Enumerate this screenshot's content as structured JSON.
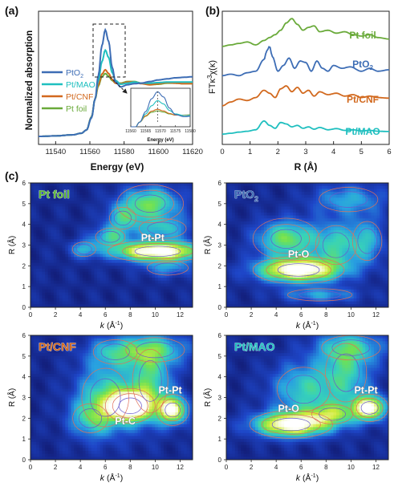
{
  "figure": {
    "panel_a_label": "(a)",
    "panel_b_label": "(b)",
    "panel_c_label": "(c)"
  },
  "chart_data": [
    {
      "id": "a",
      "type": "line",
      "title": "",
      "xlabel": "Energy (eV)",
      "ylabel": "Normalized absorption",
      "xlim": [
        11530,
        11620
      ],
      "xticks": [
        11540,
        11560,
        11580,
        11600,
        11620
      ],
      "legend": "left",
      "grid": false,
      "series": [
        {
          "name": "PtO2",
          "label_main": "PtO",
          "label_sub": "2",
          "color": "#3d6db5",
          "x": [
            11530,
            11540,
            11550,
            11555,
            11558,
            11561,
            11563,
            11565,
            11567,
            11569,
            11571,
            11573,
            11575,
            11578,
            11582,
            11586,
            11590,
            11595,
            11600,
            11605,
            11610,
            11615,
            11620
          ],
          "y": [
            0.0,
            0.01,
            0.03,
            0.06,
            0.12,
            0.35,
            0.7,
            1.15,
            1.7,
            2.0,
            1.78,
            1.3,
            1.02,
            0.93,
            0.97,
            0.99,
            1.0,
            1.03,
            1.06,
            1.08,
            1.1,
            1.11,
            1.12
          ]
        },
        {
          "name": "Pt/MAO",
          "color": "#1fbfbf",
          "x": [
            11530,
            11540,
            11550,
            11555,
            11558,
            11561,
            11563,
            11565,
            11567,
            11569,
            11571,
            11573,
            11575,
            11578,
            11582,
            11586,
            11590,
            11595,
            11600,
            11605,
            11610,
            11615,
            11620
          ],
          "y": [
            0.0,
            0.01,
            0.03,
            0.06,
            0.12,
            0.36,
            0.7,
            1.05,
            1.4,
            1.62,
            1.48,
            1.2,
            1.05,
            0.98,
            1.0,
            1.02,
            1.0,
            1.0,
            1.01,
            1.02,
            1.02,
            1.02,
            1.02
          ]
        },
        {
          "name": "Pt/CNF",
          "color": "#d2691e",
          "x": [
            11530,
            11540,
            11550,
            11555,
            11558,
            11561,
            11563,
            11565,
            11567,
            11569,
            11571,
            11573,
            11575,
            11578,
            11582,
            11586,
            11590,
            11595,
            11600,
            11605,
            11610,
            11615,
            11620
          ],
          "y": [
            0.0,
            0.01,
            0.03,
            0.06,
            0.12,
            0.37,
            0.7,
            0.97,
            1.17,
            1.25,
            1.18,
            1.07,
            1.0,
            0.99,
            1.02,
            1.02,
            0.99,
            0.97,
            0.99,
            1.01,
            1.0,
            0.99,
            0.99
          ]
        },
        {
          "name": "Pt foil",
          "color": "#6aaa3a",
          "x": [
            11530,
            11540,
            11550,
            11555,
            11558,
            11561,
            11563,
            11565,
            11567,
            11569,
            11571,
            11573,
            11575,
            11578,
            11582,
            11586,
            11590,
            11595,
            11600,
            11605,
            11610,
            11615,
            11620
          ],
          "y": [
            0.0,
            0.01,
            0.03,
            0.06,
            0.12,
            0.37,
            0.7,
            0.95,
            1.12,
            1.18,
            1.13,
            1.05,
            1.0,
            1.0,
            1.03,
            1.03,
            1.0,
            0.97,
            0.98,
            1.0,
            1.0,
            0.99,
            0.99
          ]
        }
      ],
      "inset": {
        "xlabel": "Energy (eV)",
        "xlim": [
          11560,
          11580
        ],
        "xticks": [
          11560,
          11565,
          11570,
          11575,
          11580
        ]
      }
    },
    {
      "id": "b",
      "type": "line",
      "title": "",
      "xlabel": "R (Å)",
      "ylabel_main": "FTκ",
      "ylabel_sup": "3",
      "ylabel_tail": "χ(κ)",
      "xlim": [
        0,
        6
      ],
      "xticks": [
        0,
        1,
        2,
        3,
        4,
        5,
        6
      ],
      "series": [
        {
          "name": "Pt foil",
          "color": "#6aaa3a",
          "offset": 3.0,
          "x": [
            0,
            0.3,
            0.6,
            0.9,
            1.2,
            1.5,
            1.7,
            1.9,
            2.1,
            2.3,
            2.5,
            2.7,
            2.9,
            3.1,
            3.3,
            3.5,
            3.8,
            4.1,
            4.4,
            4.7,
            5.0,
            5.3,
            5.6,
            6.0
          ],
          "y": [
            0.05,
            0.1,
            0.15,
            0.2,
            0.1,
            0.25,
            0.35,
            0.45,
            0.6,
            0.85,
            1.0,
            0.8,
            0.6,
            0.7,
            0.75,
            0.55,
            0.6,
            0.5,
            0.55,
            0.45,
            0.4,
            0.45,
            0.35,
            0.3
          ]
        },
        {
          "name": "PtO2",
          "label_main": "PtO",
          "label_sub": "2",
          "color": "#3d6db5",
          "offset": 2.0,
          "x": [
            0,
            0.3,
            0.6,
            0.9,
            1.2,
            1.5,
            1.6,
            1.7,
            1.8,
            2.0,
            2.2,
            2.4,
            2.6,
            2.8,
            3.0,
            3.2,
            3.4,
            3.6,
            3.8,
            4.0,
            4.3,
            4.6,
            5.0,
            5.3,
            5.6,
            6.0
          ],
          "y": [
            0.05,
            0.1,
            0.05,
            0.15,
            0.2,
            0.6,
            0.9,
            1.05,
            0.7,
            0.2,
            0.4,
            0.65,
            0.3,
            0.55,
            0.5,
            0.2,
            0.55,
            0.3,
            0.2,
            0.4,
            0.3,
            0.35,
            0.2,
            0.3,
            0.2,
            0.25
          ]
        },
        {
          "name": "Pt/CNF",
          "color": "#d2691e",
          "offset": 1.0,
          "x": [
            0,
            0.3,
            0.6,
            0.9,
            1.2,
            1.5,
            1.7,
            1.9,
            2.1,
            2.3,
            2.5,
            2.7,
            2.9,
            3.1,
            3.3,
            3.5,
            3.8,
            4.1,
            4.4,
            4.7,
            5.0,
            5.3,
            5.6,
            6.0
          ],
          "y": [
            0.02,
            0.15,
            0.25,
            0.2,
            0.3,
            0.55,
            0.45,
            0.3,
            0.6,
            0.7,
            0.5,
            0.65,
            0.45,
            0.55,
            0.35,
            0.5,
            0.4,
            0.45,
            0.35,
            0.4,
            0.3,
            0.35,
            0.3,
            0.28
          ]
        },
        {
          "name": "Pt/MAO",
          "color": "#1fbfbf",
          "offset": 0.0,
          "x": [
            0,
            0.3,
            0.6,
            0.9,
            1.2,
            1.5,
            1.7,
            1.9,
            2.1,
            2.3,
            2.5,
            2.7,
            2.9,
            3.1,
            3.3,
            3.5,
            3.8,
            4.1,
            4.4,
            4.7,
            5.0,
            5.3,
            5.6,
            6.0
          ],
          "y": [
            0.05,
            0.08,
            0.12,
            0.15,
            0.2,
            0.5,
            0.35,
            0.25,
            0.45,
            0.4,
            0.3,
            0.35,
            0.25,
            0.3,
            0.22,
            0.28,
            0.2,
            0.24,
            0.18,
            0.2,
            0.16,
            0.18,
            0.15,
            0.14
          ]
        }
      ]
    },
    {
      "id": "c-ptfoil",
      "type": "heatmap",
      "title": "Pt foil",
      "title_color": "#5cb837",
      "xlabel_k": "k",
      "xlabel_unit": " (Å",
      "xlabel_sup": "-1",
      "xlabel_close": ")",
      "ylabel": "R (Å)",
      "xlim": [
        0,
        13
      ],
      "ylim": [
        0,
        6
      ],
      "xticks": [
        0,
        2,
        4,
        6,
        8,
        10,
        12
      ],
      "yticks": [
        0,
        1,
        2,
        3,
        4,
        5,
        6
      ],
      "annotations": [
        {
          "text": "Pt-Pt",
          "k": 9.8,
          "r": 3.2
        }
      ],
      "features": [
        {
          "k": 10.2,
          "r": 2.7,
          "sk": 2.4,
          "sr": 0.32,
          "a": 1.0
        },
        {
          "k": 9.6,
          "r": 5.0,
          "sk": 1.6,
          "sr": 0.55,
          "a": 0.55
        },
        {
          "k": 6.4,
          "r": 3.4,
          "sk": 1.0,
          "sr": 0.35,
          "a": 0.4
        },
        {
          "k": 7.4,
          "r": 4.3,
          "sk": 0.9,
          "sr": 0.45,
          "a": 0.35
        },
        {
          "k": 4.3,
          "r": 2.8,
          "sk": 0.8,
          "sr": 0.3,
          "a": 0.3
        },
        {
          "k": 10.6,
          "r": 3.8,
          "sk": 1.6,
          "sr": 0.4,
          "a": 0.35
        },
        {
          "k": 11.0,
          "r": 1.9,
          "sk": 1.4,
          "sr": 0.3,
          "a": 0.25
        }
      ]
    },
    {
      "id": "c-pto2",
      "type": "heatmap",
      "title": "PtO",
      "title_sub": "2",
      "title_color": "#3d6db5",
      "xlabel_k": "k",
      "xlabel_unit": " (Å",
      "xlabel_sup": "-1",
      "xlabel_close": ")",
      "ylabel": "R (Å)",
      "xlim": [
        0,
        13
      ],
      "ylim": [
        0,
        6
      ],
      "xticks": [
        0,
        2,
        4,
        6,
        8,
        10,
        12
      ],
      "yticks": [
        0,
        1,
        2,
        3,
        4,
        5,
        6
      ],
      "annotations": [
        {
          "text": "Pt-O",
          "k": 5.8,
          "r": 2.4
        }
      ],
      "features": [
        {
          "k": 5.8,
          "r": 1.8,
          "sk": 2.2,
          "sr": 0.4,
          "a": 1.0
        },
        {
          "k": 4.8,
          "r": 3.3,
          "sk": 1.6,
          "sr": 0.6,
          "a": 0.55
        },
        {
          "k": 8.8,
          "r": 3.0,
          "sk": 1.4,
          "sr": 0.8,
          "a": 0.4
        },
        {
          "k": 11.3,
          "r": 3.2,
          "sk": 1.0,
          "sr": 0.8,
          "a": 0.3
        },
        {
          "k": 9.8,
          "r": 5.2,
          "sk": 2.0,
          "sr": 0.5,
          "a": 0.3
        },
        {
          "k": 7.5,
          "r": 0.6,
          "sk": 2.2,
          "sr": 0.25,
          "a": 0.28
        }
      ]
    },
    {
      "id": "c-ptcnf",
      "type": "heatmap",
      "title": "Pt/CNF",
      "title_color": "#d2691e",
      "xlabel_k": "k",
      "xlabel_unit": " (Å",
      "xlabel_sup": "-1",
      "xlabel_close": ")",
      "ylabel": "R (Å)",
      "xlim": [
        0,
        13
      ],
      "ylim": [
        0,
        6
      ],
      "xticks": [
        0,
        2,
        4,
        6,
        8,
        10,
        12
      ],
      "yticks": [
        0,
        1,
        2,
        3,
        4,
        5,
        6
      ],
      "annotations": [
        {
          "text": "Pt-C",
          "k": 7.6,
          "r": 1.7
        },
        {
          "text": "Pt-Pt",
          "k": 11.2,
          "r": 3.2
        }
      ],
      "features": [
        {
          "k": 8.0,
          "r": 2.6,
          "sk": 1.2,
          "sr": 0.5,
          "a": 1.0
        },
        {
          "k": 11.4,
          "r": 2.4,
          "sk": 0.8,
          "sr": 0.45,
          "a": 0.85
        },
        {
          "k": 6.0,
          "r": 3.0,
          "sk": 1.6,
          "sr": 1.2,
          "a": 0.45
        },
        {
          "k": 9.6,
          "r": 3.8,
          "sk": 1.2,
          "sr": 1.3,
          "a": 0.45
        },
        {
          "k": 4.8,
          "r": 2.0,
          "sk": 1.2,
          "sr": 0.6,
          "a": 0.3
        },
        {
          "k": 10.0,
          "r": 5.3,
          "sk": 2.0,
          "sr": 0.5,
          "a": 0.35
        },
        {
          "k": 6.8,
          "r": 5.2,
          "sk": 1.5,
          "sr": 0.5,
          "a": 0.3
        }
      ]
    },
    {
      "id": "c-ptmao",
      "type": "heatmap",
      "title": "Pt/MAO",
      "title_color": "#1fbfbf",
      "xlabel_k": "k",
      "xlabel_unit": " (Å",
      "xlabel_sup": "-1",
      "xlabel_close": ")",
      "ylabel": "R (Å)",
      "xlim": [
        0,
        13
      ],
      "ylim": [
        0,
        6
      ],
      "xticks": [
        0,
        2,
        4,
        6,
        8,
        10,
        12
      ],
      "yticks": [
        0,
        1,
        2,
        3,
        4,
        5,
        6
      ],
      "annotations": [
        {
          "text": "Pt-O",
          "k": 5.0,
          "r": 2.3
        },
        {
          "text": "Pt-Pt",
          "k": 11.2,
          "r": 3.2
        }
      ],
      "features": [
        {
          "k": 5.2,
          "r": 1.7,
          "sk": 2.0,
          "sr": 0.4,
          "a": 0.95
        },
        {
          "k": 11.5,
          "r": 2.5,
          "sk": 0.9,
          "sr": 0.4,
          "a": 0.9
        },
        {
          "k": 8.5,
          "r": 2.2,
          "sk": 1.4,
          "sr": 0.4,
          "a": 0.45
        },
        {
          "k": 6.2,
          "r": 3.4,
          "sk": 1.8,
          "sr": 0.9,
          "a": 0.4
        },
        {
          "k": 9.6,
          "r": 4.2,
          "sk": 1.4,
          "sr": 1.2,
          "a": 0.4
        },
        {
          "k": 10.0,
          "r": 5.4,
          "sk": 2.0,
          "sr": 0.5,
          "a": 0.3
        }
      ]
    }
  ]
}
